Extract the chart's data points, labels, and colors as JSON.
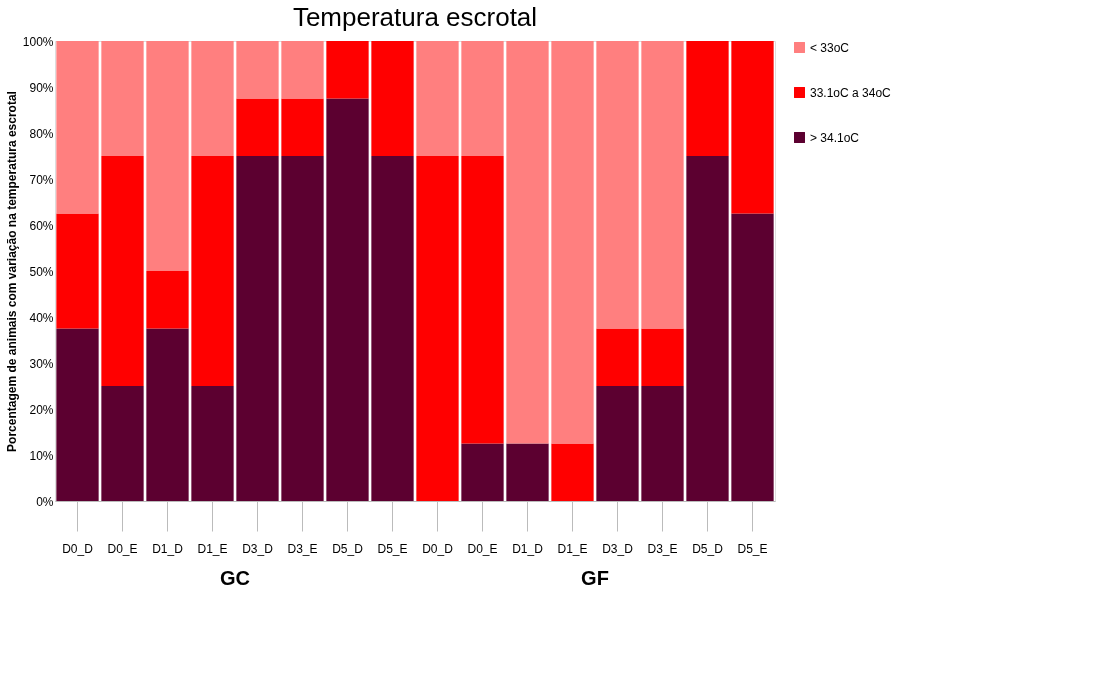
{
  "chart_data": {
    "type": "bar",
    "title": "Temperatura escrotal",
    "ylabel": "Porcentagem de animais com variação na temperatura escrotal",
    "categories": [
      "D0_D",
      "D0_E",
      "D1_D",
      "D1_E",
      "D3_D",
      "D3_E",
      "D5_D",
      "D5_E",
      "D0_D",
      "D0_E",
      "D1_D",
      "D1_E",
      "D3_D",
      "D3_E",
      "D5_D",
      "D5_E"
    ],
    "stacked": true,
    "series": [
      {
        "name": "> 34.1oC",
        "color": "#5c0030",
        "values": [
          37.5,
          25,
          37.5,
          25,
          75,
          75,
          87.5,
          75,
          0,
          12.5,
          12.5,
          0,
          25,
          25,
          75,
          62.5
        ]
      },
      {
        "name": "33.1oC a 34oC",
        "color": "#ff0000",
        "values": [
          25,
          50,
          12.5,
          50,
          12.5,
          12.5,
          12.5,
          25,
          75,
          62.5,
          0,
          12.5,
          12.5,
          12.5,
          25,
          37.5
        ]
      },
      {
        "name": "< 33oC",
        "color": "#ff7f7f",
        "values": [
          37.5,
          25,
          50,
          25,
          12.5,
          12.5,
          0,
          0,
          25,
          25,
          87.5,
          87.5,
          62.5,
          62.5,
          0,
          0
        ]
      }
    ],
    "ylim": [
      0,
      100
    ],
    "yticks": [
      {
        "value": 0,
        "label": "0%"
      },
      {
        "value": 10,
        "label": "10%"
      },
      {
        "value": 20,
        "label": "20%"
      },
      {
        "value": 30,
        "label": "30%"
      },
      {
        "value": 40,
        "label": "40%"
      },
      {
        "value": 50,
        "label": "50%"
      },
      {
        "value": 60,
        "label": "60%"
      },
      {
        "value": 70,
        "label": "70%"
      },
      {
        "value": 80,
        "label": "80%"
      },
      {
        "value": 90,
        "label": "90%"
      },
      {
        "value": 100,
        "label": "100%"
      }
    ],
    "annotations": [
      "GC",
      "GF"
    ],
    "legend": "right"
  }
}
